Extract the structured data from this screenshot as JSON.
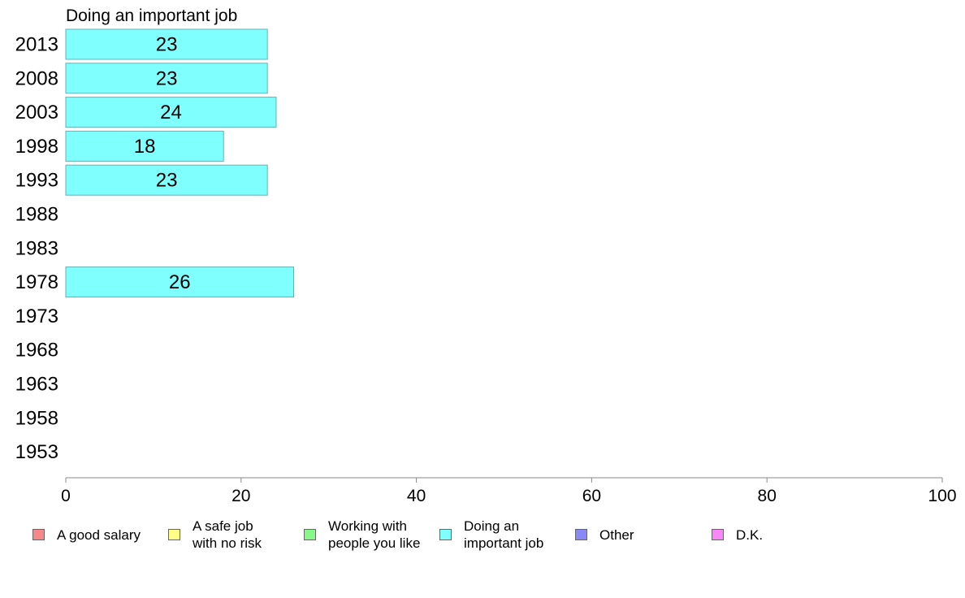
{
  "chart_data": {
    "type": "bar",
    "orientation": "horizontal",
    "title": "Doing an important job",
    "categories": [
      "2013",
      "2008",
      "2003",
      "1998",
      "1993",
      "1988",
      "1983",
      "1978",
      "1973",
      "1968",
      "1963",
      "1958",
      "1953"
    ],
    "values": [
      23,
      23,
      24,
      18,
      23,
      null,
      null,
      26,
      null,
      null,
      null,
      null,
      null
    ],
    "value_labels": [
      "23",
      "23",
      "24",
      "18",
      "23",
      "",
      "",
      "26",
      "",
      "",
      "",
      "",
      ""
    ],
    "xlim": [
      0,
      100
    ],
    "xticks": [
      0,
      20,
      40,
      60,
      80,
      100
    ],
    "xtick_labels": [
      "0",
      "20",
      "40",
      "60",
      "80",
      "100"
    ],
    "bar_color": "#80ffff",
    "bar_edge_color": "#5fb3b3",
    "legend": {
      "placement": "bottom",
      "items": [
        {
          "label": "A good salary",
          "color": "#f88888"
        },
        {
          "label": "A safe job\nwith no risk",
          "color": "#ffff88"
        },
        {
          "label": "Working with\npeople you like",
          "color": "#88f888"
        },
        {
          "label": "Doing an\nimportant job",
          "color": "#80ffff"
        },
        {
          "label": "Other",
          "color": "#8888f8"
        },
        {
          "label": "D.K.",
          "color": "#f888f8"
        }
      ]
    }
  }
}
